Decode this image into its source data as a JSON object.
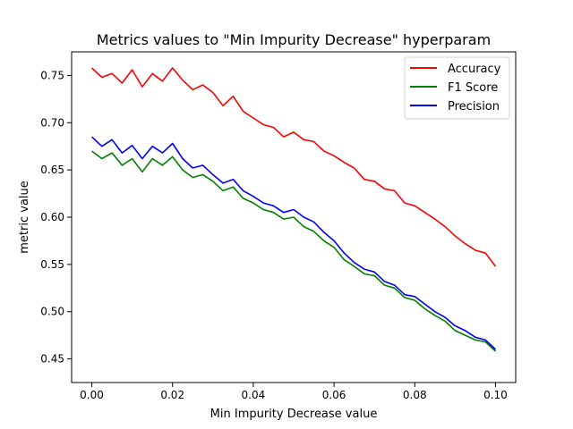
{
  "chart_data": {
    "type": "line",
    "title": "Metrics values to \"Min Impurity Decrease\" hyperparam",
    "xlabel": "Min Impurity Decrease value",
    "ylabel": "metric value",
    "xlim": [
      -0.005,
      0.105
    ],
    "ylim": [
      0.425,
      0.775
    ],
    "x_ticks": [
      0.0,
      0.02,
      0.04,
      0.06,
      0.08,
      0.1
    ],
    "x_tick_labels": [
      "0.00",
      "0.02",
      "0.04",
      "0.06",
      "0.08",
      "0.10"
    ],
    "y_ticks": [
      0.45,
      0.5,
      0.55,
      0.6,
      0.65,
      0.7,
      0.75
    ],
    "y_tick_labels": [
      "0.45",
      "0.50",
      "0.55",
      "0.60",
      "0.65",
      "0.70",
      "0.75"
    ],
    "grid": false,
    "legend_position": "top-right",
    "x": [
      0.0,
      0.0025,
      0.005,
      0.0075,
      0.01,
      0.0125,
      0.015,
      0.0175,
      0.02,
      0.0225,
      0.025,
      0.0275,
      0.03,
      0.0325,
      0.035,
      0.0375,
      0.04,
      0.0425,
      0.045,
      0.0475,
      0.05,
      0.0525,
      0.055,
      0.0575,
      0.06,
      0.0625,
      0.065,
      0.0675,
      0.07,
      0.0725,
      0.075,
      0.0775,
      0.08,
      0.0825,
      0.085,
      0.0875,
      0.09,
      0.0925,
      0.095,
      0.0975,
      0.1
    ],
    "series": [
      {
        "name": "Accuracy",
        "color": "#ff0000",
        "values": [
          0.758,
          0.748,
          0.752,
          0.742,
          0.756,
          0.738,
          0.752,
          0.744,
          0.758,
          0.745,
          0.735,
          0.74,
          0.732,
          0.718,
          0.728,
          0.712,
          0.705,
          0.698,
          0.695,
          0.685,
          0.69,
          0.682,
          0.68,
          0.67,
          0.665,
          0.658,
          0.652,
          0.64,
          0.638,
          0.63,
          0.628,
          0.615,
          0.612,
          0.605,
          0.598,
          0.59,
          0.58,
          0.572,
          0.565,
          0.562,
          0.548
        ]
      },
      {
        "name": "F1 Score",
        "color": "#008000",
        "values": [
          0.67,
          0.662,
          0.668,
          0.655,
          0.662,
          0.648,
          0.662,
          0.655,
          0.664,
          0.65,
          0.642,
          0.645,
          0.638,
          0.628,
          0.632,
          0.62,
          0.615,
          0.608,
          0.605,
          0.598,
          0.6,
          0.59,
          0.585,
          0.575,
          0.568,
          0.555,
          0.548,
          0.54,
          0.538,
          0.528,
          0.525,
          0.515,
          0.512,
          0.503,
          0.496,
          0.49,
          0.48,
          0.475,
          0.47,
          0.468,
          0.458
        ]
      },
      {
        "name": "Precision",
        "color": "#0000ff",
        "values": [
          0.685,
          0.675,
          0.682,
          0.668,
          0.676,
          0.662,
          0.675,
          0.668,
          0.678,
          0.662,
          0.652,
          0.655,
          0.645,
          0.636,
          0.64,
          0.628,
          0.622,
          0.615,
          0.612,
          0.605,
          0.608,
          0.6,
          0.595,
          0.584,
          0.575,
          0.562,
          0.552,
          0.545,
          0.542,
          0.532,
          0.528,
          0.518,
          0.516,
          0.508,
          0.5,
          0.494,
          0.485,
          0.48,
          0.473,
          0.47,
          0.46
        ]
      }
    ]
  }
}
